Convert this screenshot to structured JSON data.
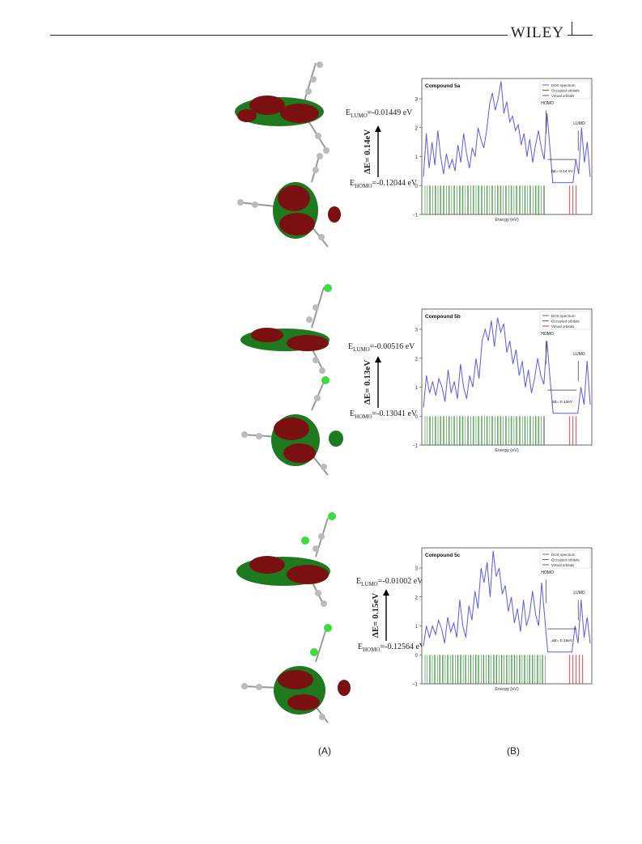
{
  "header": {
    "publisher": "WILEY"
  },
  "panel_labels": [
    "(A)",
    "(B)"
  ],
  "rows": [
    {
      "lumo": "0.01449 eV",
      "homo": "0.12044 eV",
      "gap": "0.14eV"
    },
    {
      "lumo": "0.00516 eV",
      "homo": "0.13041 eV",
      "gap": "0.13eV"
    },
    {
      "lumo": "0.01002 eV",
      "homo": "0.12564 eV",
      "gap": "0.15eV"
    }
  ],
  "text": {
    "e_lumo": "E",
    "lumo_sub": "LUMO",
    "e_homo": "E",
    "homo_sub": "HOMO",
    "delta_e": "ΔE=",
    "minus": "=-"
  },
  "colors": {
    "dos": "#5a5ae6",
    "occupied": "#2e8b2e",
    "virtual": "#e03030",
    "orbital_green": "#1f7a1f",
    "orbital_red": "#7a1010"
  },
  "chart_data": [
    {
      "type": "line",
      "title": "Compound 5a",
      "xlabel": "Energy (eV)",
      "ylabel": "",
      "yticks": [
        "−1",
        "0",
        "1",
        "2",
        "3"
      ],
      "ylim": [
        -1,
        3.7
      ],
      "legend": [
        "DOS spectrum",
        "Occupied orbitals",
        "Virtual orbitals"
      ],
      "legend_position": "top-right",
      "annotations": {
        "homo": "HOMO",
        "lumo": "LUMO",
        "gap": "ΔE= 0.14 eV"
      },
      "dos": [
        0.3,
        1.8,
        0.6,
        1.5,
        0.7,
        1.9,
        1.0,
        0.4,
        1.1,
        0.6,
        0.9,
        0.5,
        1.4,
        0.8,
        1.8,
        1.1,
        0.6,
        1.3,
        1.0,
        2.0,
        1.6,
        1.3,
        1.9,
        2.8,
        3.2,
        2.6,
        3.0,
        3.6,
        2.5,
        2.9,
        2.2,
        2.4,
        1.9,
        2.1,
        1.4,
        1.8,
        1.0,
        1.6,
        0.8,
        1.4,
        1.9,
        1.3,
        0.9,
        2.5,
        1.3,
        0.1,
        0.1,
        0.1,
        0.1,
        0.1,
        0.1,
        0.1,
        0.1,
        0.9,
        0.4,
        2.0,
        0.8,
        1.5,
        0.3
      ],
      "occupied_bars": 70,
      "virtual_bars": 3
    },
    {
      "type": "line",
      "title": "Compound 5b",
      "xlabel": "Energy (eV)",
      "ylabel": "",
      "yticks": [
        "−1",
        "0",
        "1",
        "2",
        "3"
      ],
      "ylim": [
        -1,
        3.7
      ],
      "legend": [
        "DOS spectrum",
        "Occupied orbitals",
        "Virtual orbitals"
      ],
      "legend_position": "top-right",
      "annotations": {
        "homo": "HOMO",
        "lumo": "LUMO",
        "gap": "ΔE= 0.13eV"
      },
      "dos": [
        0.3,
        1.4,
        0.8,
        1.2,
        0.7,
        1.3,
        1.0,
        0.5,
        1.6,
        0.8,
        1.2,
        0.6,
        1.8,
        1.0,
        0.6,
        1.4,
        1.0,
        2.0,
        1.3,
        2.6,
        3.0,
        2.6,
        3.3,
        2.4,
        3.4,
        2.9,
        3.2,
        2.2,
        2.6,
        1.8,
        2.3,
        1.4,
        1.9,
        1.0,
        1.6,
        0.8,
        1.3,
        2.0,
        1.4,
        1.1,
        2.6,
        1.3,
        0.1,
        0.1,
        0.1,
        0.1,
        0.1,
        0.1,
        0.1,
        0.1,
        0.1,
        1.0,
        0.4,
        1.9,
        0.4
      ],
      "occupied_bars": 70,
      "virtual_bars": 3
    },
    {
      "type": "line",
      "title": "Compound 5c",
      "xlabel": "Energy (eV)",
      "ylabel": "",
      "yticks": [
        "−1",
        "0",
        "1",
        "2",
        "3"
      ],
      "ylim": [
        -1,
        3.7
      ],
      "legend": [
        "DOS spectrum",
        "Occupied orbitals",
        "Virtual orbitals"
      ],
      "legend_position": "top-right",
      "annotations": {
        "homo": "HOMO",
        "lumo": "LUMO",
        "gap": "ΔE= 0.15eV"
      },
      "dos": [
        0.3,
        1.0,
        0.6,
        1.0,
        0.7,
        1.2,
        0.9,
        0.4,
        1.3,
        0.8,
        1.1,
        0.6,
        1.9,
        1.0,
        0.6,
        1.7,
        1.2,
        2.2,
        1.6,
        3.0,
        2.5,
        3.2,
        2.0,
        3.6,
        2.7,
        3.0,
        2.1,
        2.4,
        1.5,
        2.0,
        1.1,
        1.6,
        0.8,
        1.9,
        1.0,
        1.4,
        2.2,
        1.4,
        1.0,
        2.5,
        1.3,
        0.1,
        0.1,
        0.1,
        0.1,
        0.1,
        0.1,
        0.1,
        0.1,
        0.1,
        1.0,
        0.4,
        1.9,
        0.6,
        1.3,
        0.4
      ],
      "occupied_bars": 74,
      "virtual_bars": 5
    }
  ]
}
